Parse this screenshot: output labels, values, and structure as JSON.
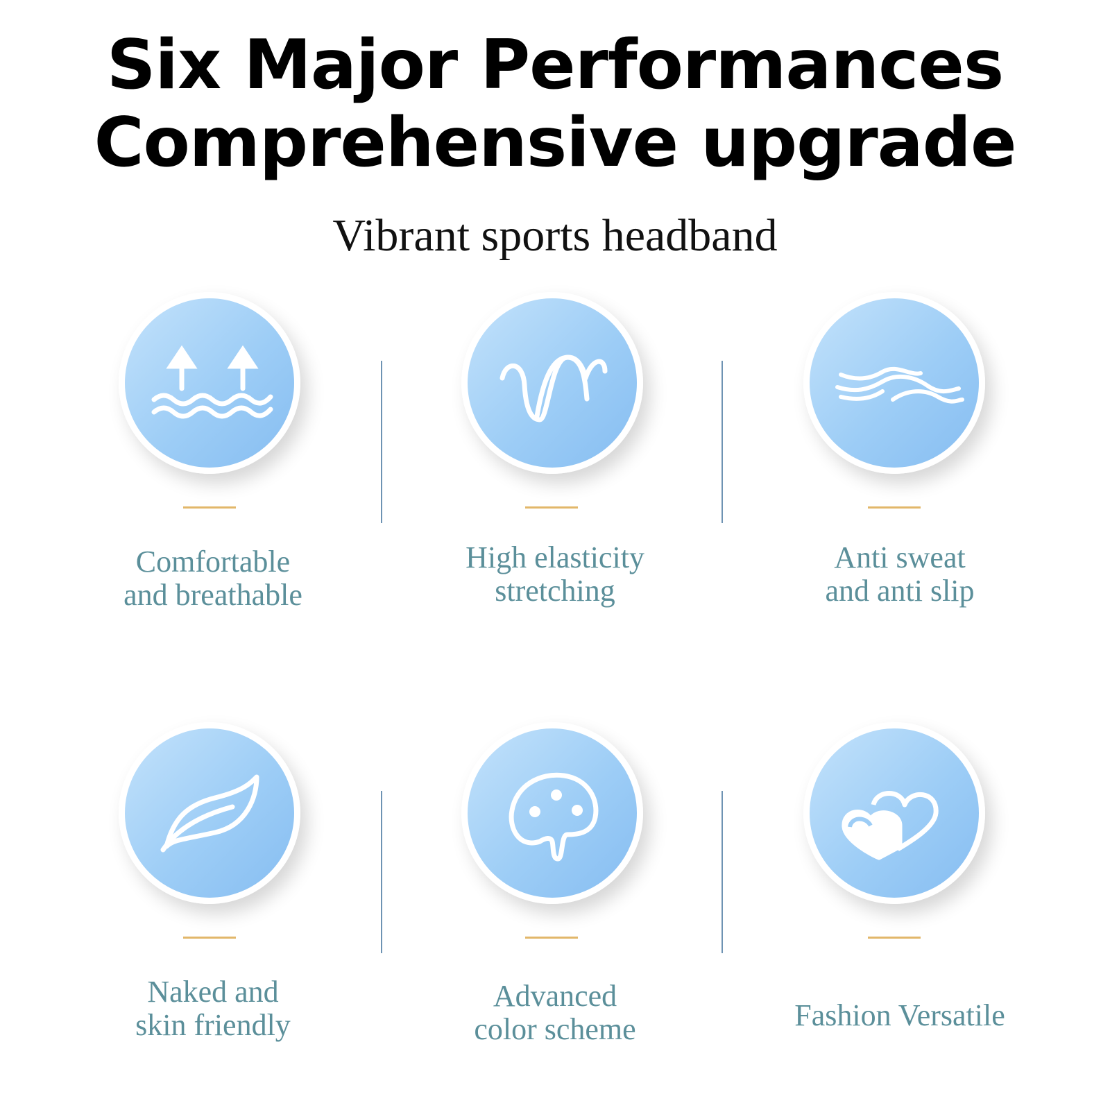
{
  "header": {
    "title_line1": "Six Major Performances",
    "title_line2": "Comprehensive upgrade",
    "subtitle": "Vibrant sports headband"
  },
  "colors": {
    "circle": "#9dcdf6",
    "label": "#5b8f9a",
    "accent_line": "#e2b76a",
    "divider": "#6e93b3"
  },
  "features": [
    {
      "icon": "breathable-arrows-waves-icon",
      "line1": "Comfortable",
      "line2": "and breathable"
    },
    {
      "icon": "elastic-wave-icon",
      "line1": "High elasticity",
      "line2": "stretching"
    },
    {
      "icon": "wavy-lines-icon",
      "line1": "Anti sweat",
      "line2": "and anti slip"
    },
    {
      "icon": "leaf-icon",
      "line1": "Naked and",
      "line2": "skin friendly"
    },
    {
      "icon": "palette-icon",
      "line1": "Advanced",
      "line2": "color scheme"
    },
    {
      "icon": "hearts-icon",
      "line1": "Fashion Versatile",
      "line2": ""
    }
  ]
}
